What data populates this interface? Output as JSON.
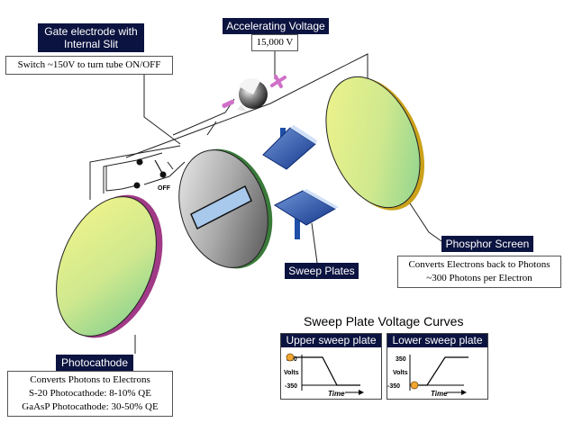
{
  "gate": {
    "title_line1": "Gate electrode with",
    "title_line2": "Internal Slit",
    "note": "Switch ~150V to turn tube ON/OFF",
    "off_label": "OFF"
  },
  "accelerating": {
    "title": "Accelerating Voltage",
    "value": "15,000 V"
  },
  "phosphor": {
    "title": "Phosphor Screen",
    "line1": "Converts Electrons back  to Photons",
    "line2": "~300 Photons per Electron"
  },
  "sweep_plates": {
    "title": "Sweep Plates"
  },
  "photocathode": {
    "title": "Photocathode",
    "line1": "Converts Photons to Electrons",
    "line2": "S-20 Photocathode: 8-10% QE",
    "line3": "GaAsP Photocathode: 30-50% QE"
  },
  "curves": {
    "title": "Sweep Plate Voltage Curves",
    "upper": {
      "title": "Upper sweep plate",
      "ymax": "350",
      "ymin": "-350",
      "ylabel": "Volts",
      "xlabel": "Time"
    },
    "lower": {
      "title": "Lower sweep plate",
      "ymax": "350",
      "ymin": "-350",
      "ylabel": "Volts",
      "xlabel": "Time"
    }
  },
  "colors": {
    "label_bg": "#0b1340",
    "plate_blue": "#1f4fa8",
    "disc_yellow": "#e8f08a",
    "disc_green": "#8fd48f",
    "accent_pink": "#d070c8",
    "marker_orange": "#f2a630"
  }
}
